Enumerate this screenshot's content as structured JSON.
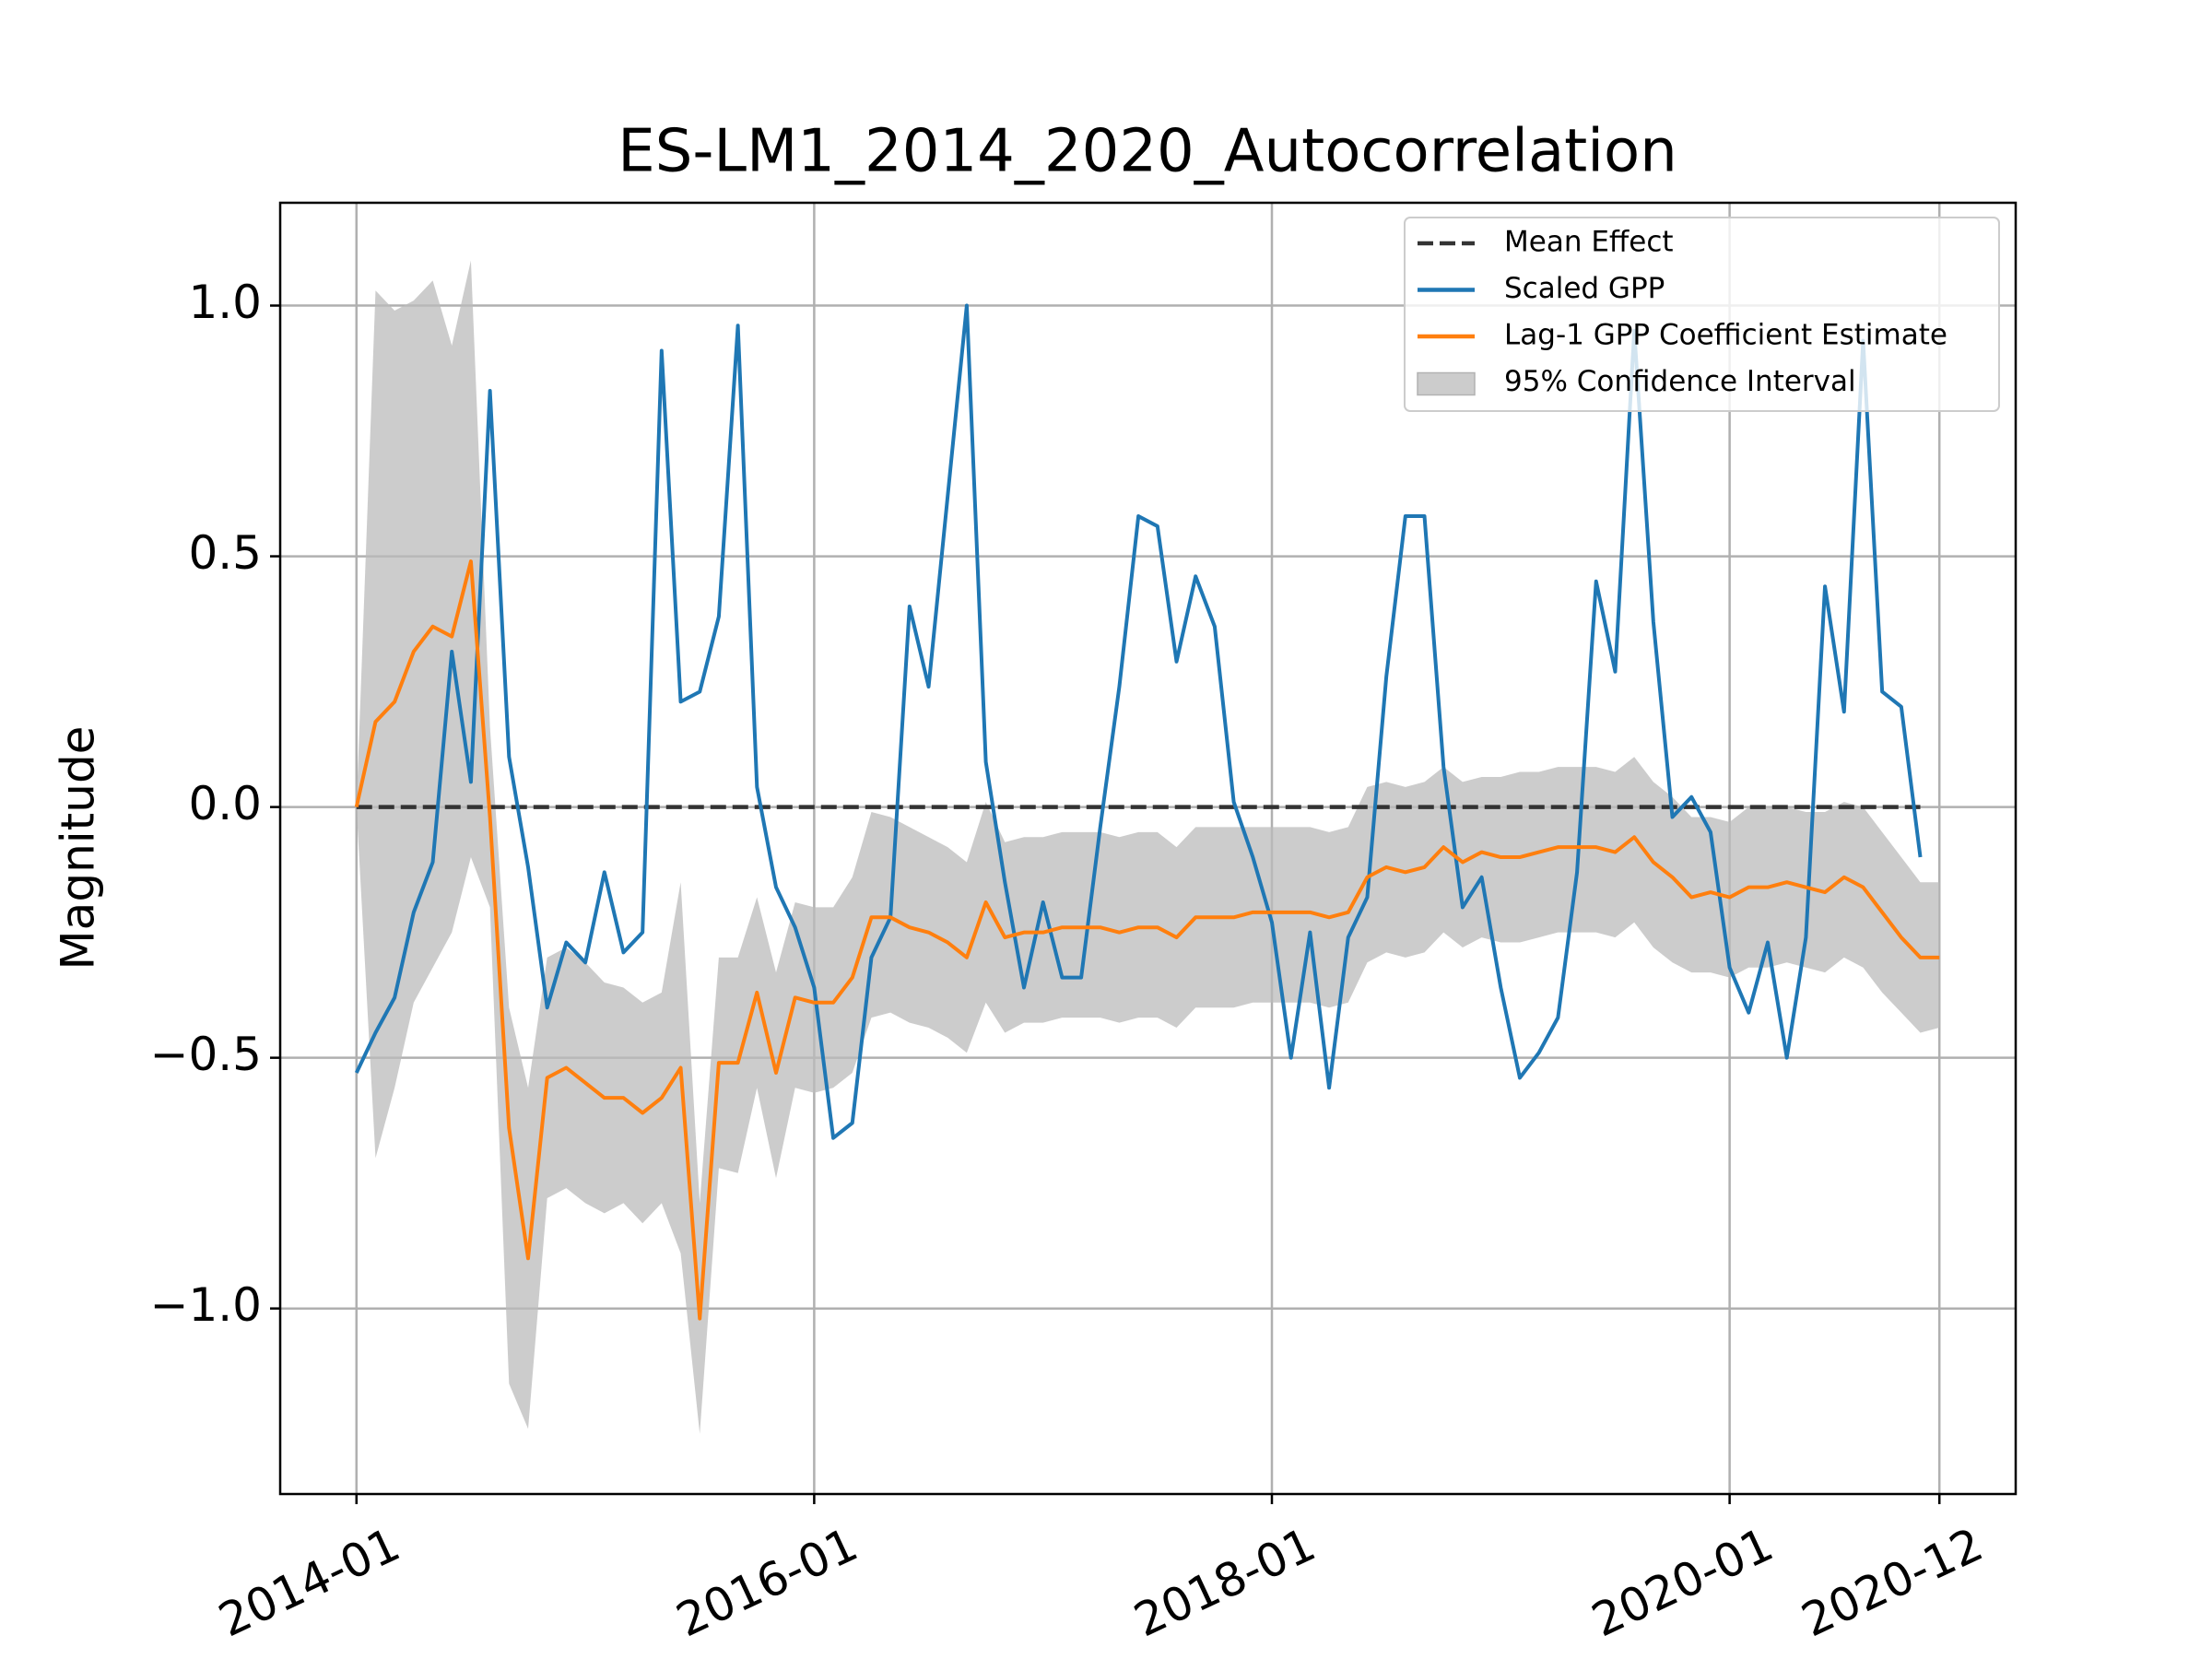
{
  "chart_data": {
    "type": "line",
    "title": "ES-LM1_2014_2020_Autocorrelation",
    "ylabel": "Magnitude",
    "x": [
      "2014-01",
      "2014-02",
      "2014-03",
      "2014-04",
      "2014-05",
      "2014-06",
      "2014-07",
      "2014-08",
      "2014-09",
      "2014-10",
      "2014-11",
      "2014-12",
      "2015-01",
      "2015-02",
      "2015-03",
      "2015-04",
      "2015-05",
      "2015-06",
      "2015-07",
      "2015-08",
      "2015-09",
      "2015-10",
      "2015-11",
      "2015-12",
      "2016-01",
      "2016-02",
      "2016-03",
      "2016-04",
      "2016-05",
      "2016-06",
      "2016-07",
      "2016-08",
      "2016-09",
      "2016-10",
      "2016-11",
      "2016-12",
      "2017-01",
      "2017-02",
      "2017-03",
      "2017-04",
      "2017-05",
      "2017-06",
      "2017-07",
      "2017-08",
      "2017-09",
      "2017-10",
      "2017-11",
      "2017-12",
      "2018-01",
      "2018-02",
      "2018-03",
      "2018-04",
      "2018-05",
      "2018-06",
      "2018-07",
      "2018-08",
      "2018-09",
      "2018-10",
      "2018-11",
      "2018-12",
      "2019-01",
      "2019-02",
      "2019-03",
      "2019-04",
      "2019-05",
      "2019-06",
      "2019-07",
      "2019-08",
      "2019-09",
      "2019-10",
      "2019-11",
      "2019-12",
      "2020-01",
      "2020-02",
      "2020-03",
      "2020-04",
      "2020-05",
      "2020-06",
      "2020-07",
      "2020-08",
      "2020-09",
      "2020-10",
      "2020-11",
      "2020-12"
    ],
    "series": [
      {
        "name": "Mean Effect",
        "color": "#333333",
        "dashed": true,
        "values": [
          0,
          0,
          0,
          0,
          0,
          0,
          0,
          0,
          0,
          0,
          0,
          0,
          0,
          0,
          0,
          0,
          0,
          0,
          0,
          0,
          0,
          0,
          0,
          0,
          0,
          0,
          0,
          0,
          0,
          0,
          0,
          0,
          0,
          0,
          0,
          0,
          0,
          0,
          0,
          0,
          0,
          0,
          0,
          0,
          0,
          0,
          0,
          0,
          0,
          0,
          0,
          0,
          0,
          0,
          0,
          0,
          0,
          0,
          0,
          0,
          0,
          0,
          0,
          0,
          0,
          0,
          0,
          0,
          0,
          0,
          0,
          0,
          0,
          0,
          0,
          0,
          0,
          0,
          0,
          0,
          0,
          0,
          0,
          null
        ]
      },
      {
        "name": "Scaled GPP",
        "color": "#1f77b4",
        "values": [
          -0.53,
          -0.45,
          -0.38,
          -0.21,
          -0.11,
          0.31,
          0.05,
          0.83,
          0.1,
          -0.12,
          -0.4,
          -0.27,
          -0.31,
          -0.13,
          -0.29,
          -0.25,
          0.91,
          0.21,
          0.23,
          0.38,
          0.96,
          0.04,
          -0.16,
          -0.24,
          -0.36,
          -0.66,
          -0.63,
          -0.3,
          -0.22,
          0.4,
          0.24,
          0.62,
          1.0,
          0.09,
          -0.15,
          -0.36,
          -0.19,
          -0.34,
          -0.34,
          -0.04,
          0.24,
          0.58,
          0.56,
          0.29,
          0.46,
          0.36,
          0.01,
          -0.1,
          -0.23,
          -0.5,
          -0.25,
          -0.56,
          -0.26,
          -0.18,
          0.26,
          0.58,
          0.58,
          0.08,
          -0.2,
          -0.14,
          -0.36,
          -0.54,
          -0.49,
          -0.42,
          -0.13,
          0.45,
          0.27,
          0.95,
          0.37,
          -0.02,
          0.02,
          -0.05,
          -0.32,
          -0.41,
          -0.27,
          -0.5,
          -0.26,
          0.44,
          0.19,
          0.93,
          0.23,
          0.2,
          -0.1,
          null
        ]
      },
      {
        "name": "Lag-1 GPP Coefficient Estimate",
        "color": "#ff7f0e",
        "values": [
          0.0,
          0.17,
          0.21,
          0.31,
          0.36,
          0.34,
          0.49,
          -0.02,
          -0.64,
          -0.9,
          -0.54,
          -0.52,
          -0.55,
          -0.58,
          -0.58,
          -0.61,
          -0.58,
          -0.52,
          -1.02,
          -0.51,
          -0.51,
          -0.37,
          -0.53,
          -0.38,
          -0.39,
          -0.39,
          -0.34,
          -0.22,
          -0.22,
          -0.24,
          -0.25,
          -0.27,
          -0.3,
          -0.19,
          -0.26,
          -0.25,
          -0.25,
          -0.24,
          -0.24,
          -0.24,
          -0.25,
          -0.24,
          -0.24,
          -0.26,
          -0.22,
          -0.22,
          -0.22,
          -0.21,
          -0.21,
          -0.21,
          -0.21,
          -0.22,
          -0.21,
          -0.14,
          -0.12,
          -0.13,
          -0.12,
          -0.08,
          -0.11,
          -0.09,
          -0.1,
          -0.1,
          -0.09,
          -0.08,
          -0.08,
          -0.08,
          -0.09,
          -0.06,
          -0.11,
          -0.14,
          -0.18,
          -0.17,
          -0.18,
          -0.16,
          -0.16,
          -0.15,
          -0.16,
          -0.17,
          -0.14,
          -0.16,
          -0.21,
          -0.26,
          -0.3,
          -0.3
        ]
      },
      {
        "name": "95% Confidence Interval",
        "color": "#bbbbbb",
        "band": true,
        "lower": [
          0.0,
          -0.7,
          -0.56,
          -0.39,
          -0.32,
          -0.25,
          -0.1,
          -0.2,
          -1.15,
          -1.24,
          -0.78,
          -0.76,
          -0.79,
          -0.81,
          -0.79,
          -0.83,
          -0.79,
          -0.89,
          -1.25,
          -0.72,
          -0.73,
          -0.56,
          -0.74,
          -0.56,
          -0.57,
          -0.56,
          -0.53,
          -0.42,
          -0.41,
          -0.43,
          -0.44,
          -0.46,
          -0.49,
          -0.39,
          -0.45,
          -0.43,
          -0.43,
          -0.42,
          -0.42,
          -0.42,
          -0.43,
          -0.42,
          -0.42,
          -0.44,
          -0.4,
          -0.4,
          -0.4,
          -0.39,
          -0.39,
          -0.39,
          -0.39,
          -0.4,
          -0.39,
          -0.31,
          -0.29,
          -0.3,
          -0.29,
          -0.25,
          -0.28,
          -0.26,
          -0.27,
          -0.27,
          -0.26,
          -0.25,
          -0.25,
          -0.25,
          -0.26,
          -0.23,
          -0.28,
          -0.31,
          -0.33,
          -0.33,
          -0.34,
          -0.32,
          -0.32,
          -0.31,
          -0.32,
          -0.33,
          -0.3,
          -0.32,
          -0.37,
          -0.41,
          -0.45,
          -0.44
        ],
        "upper": [
          0.0,
          1.03,
          0.99,
          1.01,
          1.05,
          0.92,
          1.09,
          0.16,
          -0.4,
          -0.56,
          -0.3,
          -0.28,
          -0.31,
          -0.35,
          -0.36,
          -0.39,
          -0.37,
          -0.15,
          -0.79,
          -0.3,
          -0.3,
          -0.18,
          -0.33,
          -0.19,
          -0.2,
          -0.2,
          -0.14,
          -0.01,
          -0.02,
          -0.04,
          -0.06,
          -0.08,
          -0.11,
          0.01,
          -0.07,
          -0.06,
          -0.06,
          -0.05,
          -0.05,
          -0.05,
          -0.06,
          -0.05,
          -0.05,
          -0.08,
          -0.04,
          -0.04,
          -0.04,
          -0.04,
          -0.04,
          -0.04,
          -0.04,
          -0.05,
          -0.04,
          0.04,
          0.05,
          0.04,
          0.05,
          0.08,
          0.05,
          0.06,
          0.06,
          0.07,
          0.07,
          0.08,
          0.08,
          0.08,
          0.07,
          0.1,
          0.05,
          0.02,
          -0.02,
          -0.02,
          -0.03,
          0.0,
          0.0,
          0.0,
          -0.01,
          -0.01,
          0.01,
          0.0,
          -0.05,
          -0.1,
          -0.15,
          -0.15
        ]
      }
    ],
    "xlim": [
      "2013-09",
      "2021-04"
    ],
    "xticks": [
      "2014-01",
      "2016-01",
      "2018-01",
      "2020-01",
      "2020-12"
    ],
    "ylim": [
      -1.37,
      1.205
    ],
    "yticks": [
      {
        "value": -1.0,
        "label": "−1.0"
      },
      {
        "value": -0.5,
        "label": "−0.5"
      },
      {
        "value": 0.0,
        "label": "0.0"
      },
      {
        "value": 0.5,
        "label": "0.5"
      },
      {
        "value": 1.0,
        "label": "1.0"
      }
    ],
    "grid": true,
    "legend": "upper right"
  }
}
